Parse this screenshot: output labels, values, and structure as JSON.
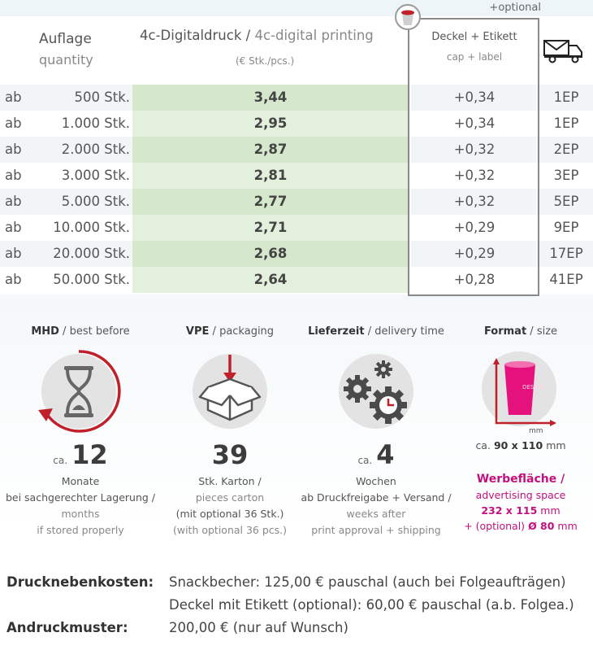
{
  "header": {
    "optional_label": "+optional"
  },
  "table": {
    "col_quantity_de": "Auflage",
    "col_quantity_en": "quantity",
    "col_digital_de": "4c-Digitaldruck",
    "col_digital_sep": " / ",
    "col_digital_en": "4c-digital printing",
    "col_unit": "(€ Stk./pcs.)",
    "col_cap_de": "Deckel + Etikett",
    "col_cap_en": "cap + label",
    "shipping_icon": "truck-mail-icon",
    "rows": [
      {
        "ab": "ab",
        "qty": "500 Stk.",
        "price": "3,44",
        "cap": "+0,34",
        "ep": "1EP"
      },
      {
        "ab": "ab",
        "qty": "1.000 Stk.",
        "price": "2,95",
        "cap": "+0,34",
        "ep": "1EP"
      },
      {
        "ab": "ab",
        "qty": "2.000 Stk.",
        "price": "2,87",
        "cap": "+0,32",
        "ep": "2EP"
      },
      {
        "ab": "ab",
        "qty": "3.000 Stk.",
        "price": "2,81",
        "cap": "+0,32",
        "ep": "3EP"
      },
      {
        "ab": "ab",
        "qty": "5.000 Stk.",
        "price": "2,77",
        "cap": "+0,32",
        "ep": "5EP"
      },
      {
        "ab": "ab",
        "qty": "10.000 Stk.",
        "price": "2,71",
        "cap": "+0,29",
        "ep": "9EP"
      },
      {
        "ab": "ab",
        "qty": "20.000 Stk.",
        "price": "2,68",
        "cap": "+0,29",
        "ep": "17EP"
      },
      {
        "ab": "ab",
        "qty": "50.000 Stk.",
        "price": "2,64",
        "cap": "+0,28",
        "ep": "41EP"
      }
    ]
  },
  "info": {
    "mhd": {
      "title_de": "MHD",
      "title_en": "best before",
      "prefix": "ca.",
      "value": "12",
      "line1": "Monate",
      "line2": "bei sachgerechter Lagerung /",
      "line3": "months",
      "line4": "if stored properly"
    },
    "vpe": {
      "title_de": "VPE",
      "title_en": "packaging",
      "value": "39",
      "line1": "Stk. Karton /",
      "line2": "pieces carton",
      "line3": "(mit optional 36 Stk.)",
      "line4": "(with optional 36 pcs.)"
    },
    "delivery": {
      "title_de": "Lieferzeit",
      "title_en": "delivery time",
      "prefix": "ca.",
      "value": "4",
      "line1": "Wochen",
      "line2": "ab Druckfreigabe + Versand /",
      "line3": "weeks after",
      "line4": "print approval + shipping"
    },
    "format": {
      "title_de": "Format",
      "title_en": "size",
      "size_prefix": "ca.",
      "size_value": "90 x 110",
      "size_unit": "mm",
      "design_label": "DESIGN",
      "axis_unit_label": "mm",
      "ad_title": "Werbefläche /",
      "ad_en": "advertising space",
      "ad_size": "232 x 115",
      "ad_size_unit": "mm",
      "ad_lid_prefix": "+ (optional)",
      "ad_lid": "Ø 80",
      "ad_lid_unit": "mm"
    },
    "colors": {
      "accent_red": "#c0202a",
      "magenta": "#c2117e",
      "icon_bg": "#e3e3e3"
    }
  },
  "costs": {
    "print_label": "Drucknebenkosten:",
    "print_value1": "Snackbecher: 125,00 € pauschal (auch bei Folgeaufträgen)",
    "print_value2": "Deckel mit Etikett (optional): 60,00 € pauschal (a.b. Folgea.)",
    "proof_label": "Andruckmuster:",
    "proof_value": "200,00 € (nur auf Wunsch)"
  }
}
